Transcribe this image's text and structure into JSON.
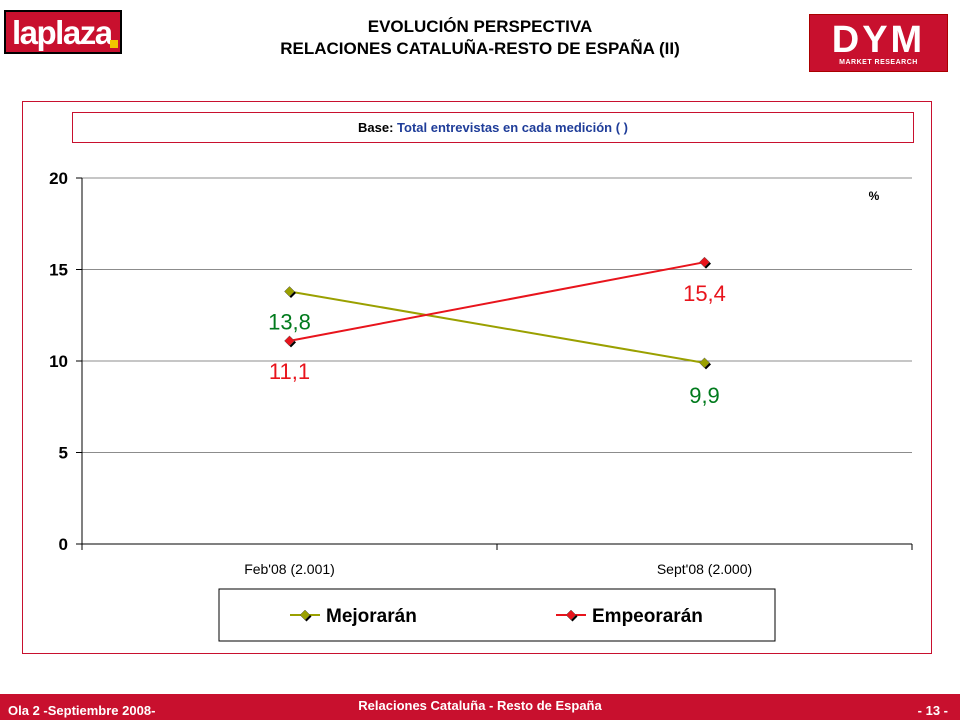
{
  "header": {
    "logo_left_text": "laplaza",
    "title_line1": "EVOLUCIÓN PERSPECTIVA",
    "title_line2": "RELACIONES CATALUÑA-RESTO DE ESPAÑA (II)",
    "logo_right_text": "DYM",
    "logo_right_sub": "MARKET RESEARCH"
  },
  "base": {
    "label": "Base:",
    "value": "Total entrevistas en cada medición  ( )"
  },
  "footer": {
    "left": "Ola 2 -Septiembre 2008-",
    "center": "Relaciones Cataluña - Resto de España",
    "right": "- 13 -"
  },
  "colors": {
    "brand_red": "#c8102e",
    "series_mejoraran": "#9aa000",
    "series_empeoraran": "#e8141c",
    "label_green": "#007a1c",
    "label_red": "#e8141c"
  },
  "chart_data": {
    "type": "line",
    "categories": [
      "Feb'08 (2.001)",
      "Sept'08 (2.000)"
    ],
    "series": [
      {
        "name": "Mejorarán",
        "values": [
          13.8,
          9.9
        ],
        "labels": [
          "13,8",
          "9,9"
        ]
      },
      {
        "name": "Empeorarán",
        "values": [
          11.1,
          15.4
        ],
        "labels": [
          "11,1",
          "15,4"
        ]
      }
    ],
    "y_ticks": [
      "0",
      "5",
      "10",
      "15",
      "20"
    ],
    "ylim": [
      0,
      20
    ],
    "unit_label": "%",
    "grid": true,
    "legend_position": "bottom"
  }
}
